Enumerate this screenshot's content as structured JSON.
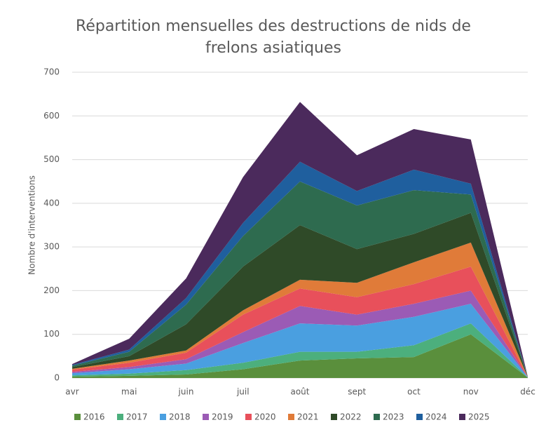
{
  "chart_data": {
    "type": "stacked_area",
    "title": "Répartition mensuelles des destructions de nids de frelons asiatiques",
    "y_label": "Nombre d'interventions",
    "categories": [
      "avr",
      "mai",
      "juin",
      "juil",
      "août",
      "sept",
      "oct",
      "nov",
      "déc"
    ],
    "ylim": [
      0,
      700
    ],
    "yticks": [
      0,
      100,
      200,
      300,
      400,
      500,
      600,
      700
    ],
    "grid": true,
    "series": [
      {
        "name": "2016",
        "color": "#5a8f3c",
        "values": [
          3,
          5,
          8,
          20,
          40,
          45,
          48,
          100,
          1
        ]
      },
      {
        "name": "2017",
        "color": "#4caf7d",
        "values": [
          3,
          5,
          10,
          15,
          20,
          15,
          27,
          25,
          0
        ]
      },
      {
        "name": "2018",
        "color": "#4a9fe0",
        "values": [
          5,
          10,
          15,
          45,
          65,
          60,
          65,
          45,
          1
        ]
      },
      {
        "name": "2019",
        "color": "#9b5bb5",
        "values": [
          3,
          5,
          10,
          25,
          40,
          25,
          30,
          30,
          0
        ]
      },
      {
        "name": "2020",
        "color": "#e8505b",
        "values": [
          5,
          10,
          15,
          40,
          40,
          40,
          45,
          55,
          0
        ]
      },
      {
        "name": "2021",
        "color": "#e07b39",
        "values": [
          2,
          5,
          5,
          10,
          20,
          33,
          50,
          55,
          0
        ]
      },
      {
        "name": "2022",
        "color": "#2f4a28",
        "values": [
          4,
          10,
          60,
          100,
          125,
          77,
          65,
          68,
          1
        ]
      },
      {
        "name": "2023",
        "color": "#2e6b4f",
        "values": [
          3,
          10,
          45,
          70,
          100,
          100,
          100,
          42,
          0
        ]
      },
      {
        "name": "2024",
        "color": "#1f5f9e",
        "values": [
          2,
          5,
          15,
          30,
          45,
          33,
          47,
          25,
          0
        ]
      },
      {
        "name": "2025",
        "color": "#4b2a5c",
        "values": [
          2,
          25,
          45,
          105,
          137,
          82,
          93,
          101,
          0
        ]
      }
    ]
  }
}
